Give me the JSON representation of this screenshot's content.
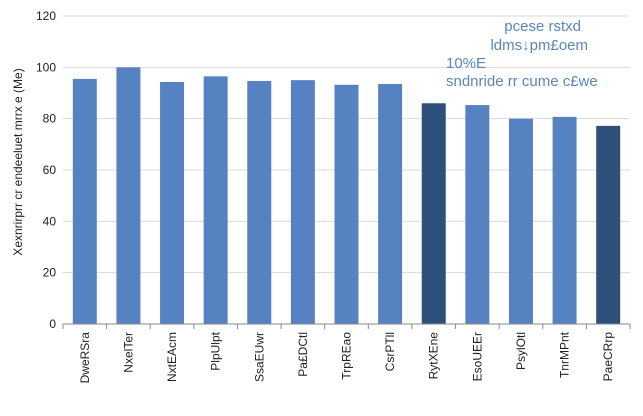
{
  "chart_data": {
    "type": "bar",
    "title": "",
    "xlabel": "",
    "ylabel": "Xexnrirprr cr endeeluet mrrx e (Me)",
    "ylim": [
      0,
      120
    ],
    "yticks": [
      0,
      20,
      40,
      60,
      80,
      100,
      120
    ],
    "grid": true,
    "legend": "none",
    "categories": [
      "DweRSra",
      "NxelTer",
      "NxtEAcm",
      "PlpUlpt",
      "SsaEUwr",
      "Pa£DCtl",
      "TrpREao",
      "CsrPTll",
      "RytXEne",
      "EsoUEEr",
      "PsylOtl",
      "TnrMPnt",
      "PaeCRrp"
    ],
    "values": [
      95.5,
      100,
      94.3,
      96.5,
      94.7,
      95,
      93.2,
      93.5,
      86,
      85.3,
      80,
      80.7,
      77.2
    ],
    "highlighted": [
      false,
      false,
      false,
      false,
      false,
      false,
      false,
      false,
      true,
      false,
      false,
      false,
      true
    ],
    "colors": {
      "bar": "#5782C1",
      "highlight": "#2E4F7A",
      "grid": "#D9D9D9",
      "axis": "#888888",
      "annotation": "#5A86BE"
    },
    "annotations": [
      {
        "text": "pcese rstxd",
        "align": "right"
      },
      {
        "text": "ldms↓pm£oem",
        "align": "right"
      },
      {
        "text": "10%E",
        "align": "left"
      },
      {
        "text": "sndnride rr cume c£we",
        "align": "left"
      }
    ]
  }
}
